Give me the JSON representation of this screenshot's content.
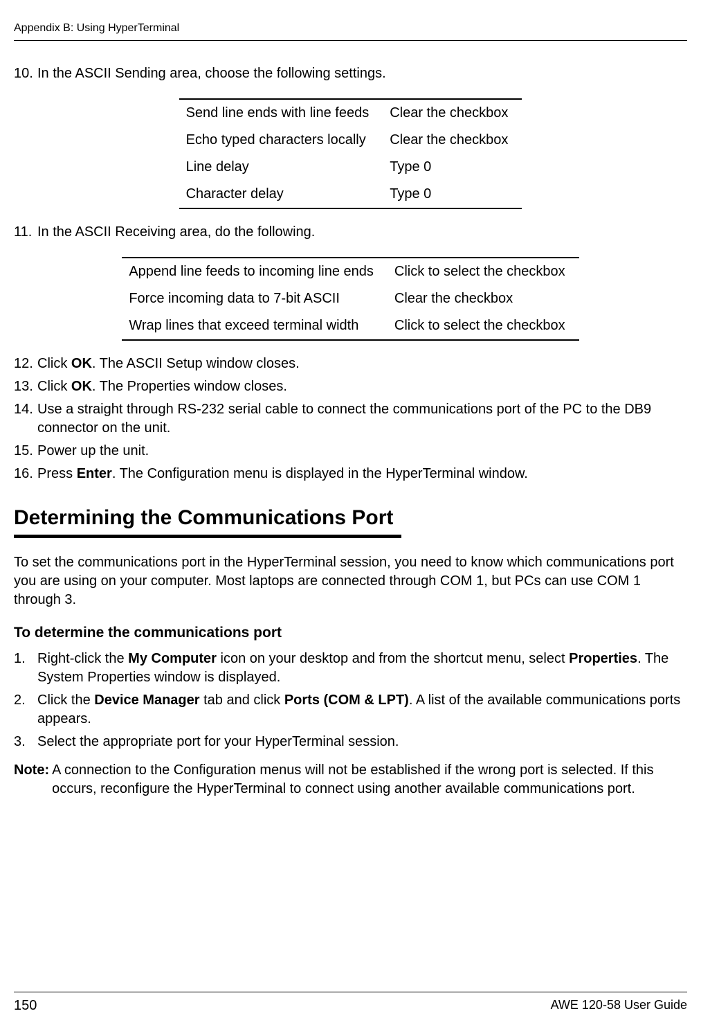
{
  "header": {
    "title": "Appendix B: Using HyperTerminal"
  },
  "steps_a": [
    {
      "num": "10.",
      "text": "In the ASCII Sending area, choose the following settings."
    }
  ],
  "table1": {
    "rows": [
      [
        "Send line ends with line feeds",
        "Clear the checkbox"
      ],
      [
        "Echo typed characters locally",
        "Clear the checkbox"
      ],
      [
        "Line delay",
        "Type 0"
      ],
      [
        "Character delay",
        "Type 0"
      ]
    ]
  },
  "steps_b": [
    {
      "num": "11.",
      "text": "In the ASCII Receiving area, do the following."
    }
  ],
  "table2": {
    "rows": [
      [
        "Append line feeds to incoming line ends",
        "Click to select the checkbox"
      ],
      [
        "Force incoming data to 7-bit ASCII",
        "Clear the checkbox"
      ],
      [
        "Wrap lines that exceed terminal width",
        "Click to select the checkbox"
      ]
    ]
  },
  "steps_c": [
    {
      "num": "12.",
      "pre": "Click ",
      "bold": "OK",
      "post": ". The ASCII Setup window closes."
    },
    {
      "num": "13.",
      "pre": "Click ",
      "bold": "OK",
      "post": ". The Properties window closes."
    },
    {
      "num": "14.",
      "text": "Use a straight through RS-232 serial cable to connect the communications port of the PC to the DB9 connector on the unit."
    },
    {
      "num": "15.",
      "text": "Power up the unit."
    },
    {
      "num": "16.",
      "pre": "Press ",
      "bold_sans": "Enter",
      "post": ". The Configuration menu is displayed in the HyperTerminal window."
    }
  ],
  "section_title": "Determining the Communications Port",
  "intro_para": "To set the communications port in the HyperTerminal session, you need to know which communications port you are using on your computer. Most laptops are connected through COM 1, but PCs can use COM 1 through 3.",
  "sub_title": "To determine the communications port",
  "sub_steps": {
    "s1": {
      "num": "1.",
      "a": "Right-click the ",
      "b1": "My Computer",
      "c": " icon on your desktop and from the shortcut menu, select ",
      "b2": "Properties",
      "d": ". The System Properties window is displayed."
    },
    "s2": {
      "num": "2.",
      "a": "Click the ",
      "b1": "Device Manager",
      "c": " tab and click ",
      "b2": "Ports (COM & LPT)",
      "d": ". A list of the available communications ports appears."
    },
    "s3": {
      "num": "3.",
      "text": "Select the appropriate port for your HyperTerminal session."
    }
  },
  "note": {
    "label": "Note:",
    "body": "A connection to the Configuration menus will not be established if the wrong port is selected. If this occurs, reconfigure the HyperTerminal to connect using another available communications port."
  },
  "footer": {
    "page": "150",
    "guide": "AWE 120-58 User Guide"
  }
}
